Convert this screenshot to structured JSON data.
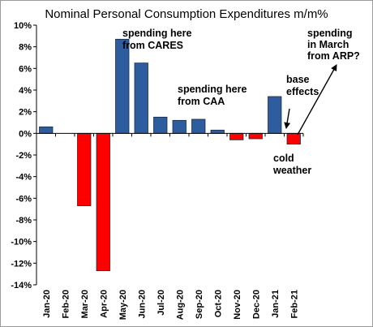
{
  "chart_data": {
    "type": "bar",
    "title": "Nominal Personal Consumption Expenditures m/m%",
    "categories": [
      "Jan-20",
      "Feb-20",
      "Mar-20",
      "Apr-20",
      "May-20",
      "Jun-20",
      "Jul-20",
      "Aug-20",
      "Sep-20",
      "Oct-20",
      "Nov-20",
      "Dec-20",
      "Jan-21",
      "Feb-21"
    ],
    "values": [
      0.6,
      0.0,
      -6.7,
      -12.7,
      8.7,
      6.5,
      1.5,
      1.2,
      1.3,
      0.3,
      -0.6,
      -0.5,
      3.4,
      -1.0
    ],
    "ylim": [
      -14,
      10
    ],
    "yticks": [
      -14,
      -12,
      -10,
      -8,
      -6,
      -4,
      -2,
      0,
      2,
      4,
      6,
      8,
      10
    ],
    "ytick_labels": [
      "-14%",
      "-12%",
      "-10%",
      "-8%",
      "-6%",
      "-4%",
      "-2%",
      "0%",
      "2%",
      "4%",
      "6%",
      "8%",
      "10%"
    ],
    "colors": {
      "positive": "#2e5d9f",
      "negative": "#ff0000",
      "bar_edge": "#1a2a40"
    },
    "grid": false,
    "legend": "none",
    "annotations": [
      {
        "lines": [
          "spending here",
          "from CARES"
        ],
        "color": "#000000"
      },
      {
        "lines": [
          "spending here",
          "from CAA"
        ],
        "color": "#000000"
      },
      {
        "lines": [
          "base",
          "effects"
        ],
        "color": "#000000"
      },
      {
        "lines": [
          "cold",
          "weather"
        ],
        "color": "#ff0000"
      },
      {
        "lines": [
          "spending",
          "in March",
          "from ARP?"
        ],
        "color": "#000000"
      }
    ]
  }
}
